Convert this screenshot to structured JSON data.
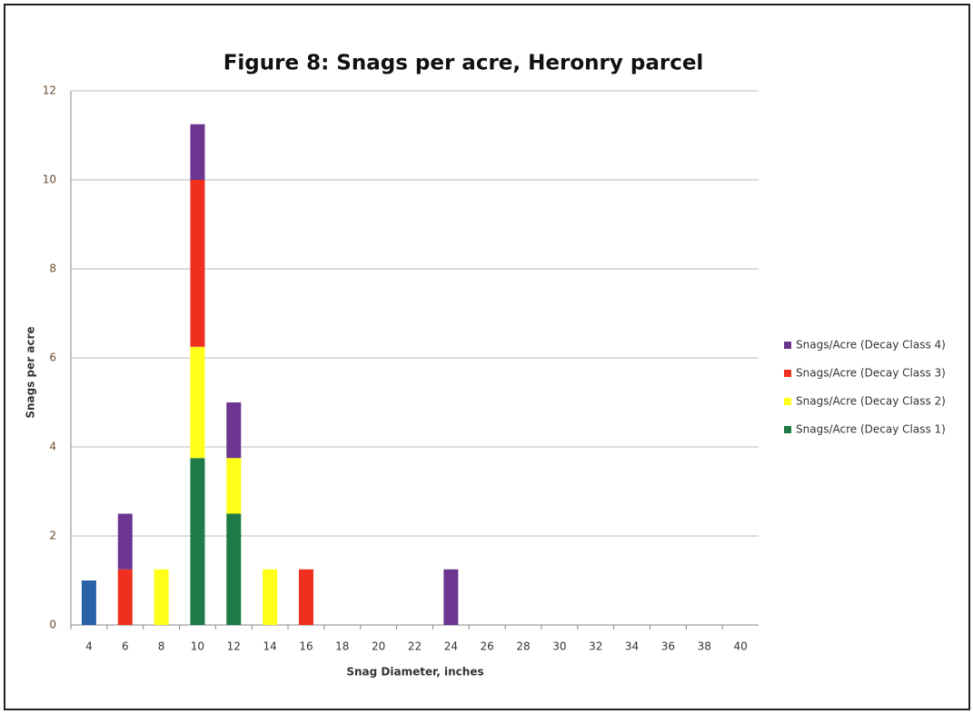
{
  "chart_data": {
    "type": "stacked_bar",
    "title": "Figure 8: Snags per acre, Heronry parcel",
    "x_label": "Snag Diameter, inches",
    "y_label": "Snags per acre",
    "categories": [
      "4",
      "6",
      "8",
      "10",
      "12",
      "14",
      "16",
      "18",
      "20",
      "22",
      "24",
      "26",
      "28",
      "30",
      "32",
      "34",
      "36",
      "38",
      "40"
    ],
    "series": [
      {
        "name": "Snags/Acre (Decay Class 1)",
        "color": "#1e7a46",
        "values": [
          0,
          0,
          0,
          3.75,
          2.5,
          0,
          0,
          0,
          0,
          0,
          0,
          0,
          0,
          0,
          0,
          0,
          0,
          0,
          0
        ]
      },
      {
        "name": "Snags/Acre (Decay Class 2)",
        "color": "#ffff1a",
        "values": [
          0,
          0,
          1.25,
          2.5,
          1.25,
          1.25,
          0,
          0,
          0,
          0,
          0,
          0,
          0,
          0,
          0,
          0,
          0,
          0,
          0
        ]
      },
      {
        "name": "Snags/Acre (Decay Class 3)",
        "color": "#f0301e",
        "values": [
          0,
          1.25,
          0,
          3.75,
          0,
          0,
          1.25,
          0,
          0,
          0,
          0,
          0,
          0,
          0,
          0,
          0,
          0,
          0,
          0
        ]
      },
      {
        "name": "Snags/Acre (Decay Class 4)",
        "color": "#6b3590",
        "values": [
          0,
          1.25,
          0,
          1.25,
          1.25,
          0,
          0,
          0,
          0,
          0,
          1.25,
          0,
          0,
          0,
          0,
          0,
          0,
          0,
          0
        ]
      },
      {
        "color": "#2a62a8",
        "values": [
          1,
          0,
          0,
          0,
          0,
          0,
          0,
          0,
          0,
          0,
          0,
          0,
          0,
          0,
          0,
          0,
          0,
          0,
          0
        ]
      }
    ],
    "ylim": [
      0,
      12
    ],
    "yticks": [
      0,
      2,
      4,
      6,
      8,
      10,
      12
    ],
    "grid": true,
    "legend": "right"
  }
}
